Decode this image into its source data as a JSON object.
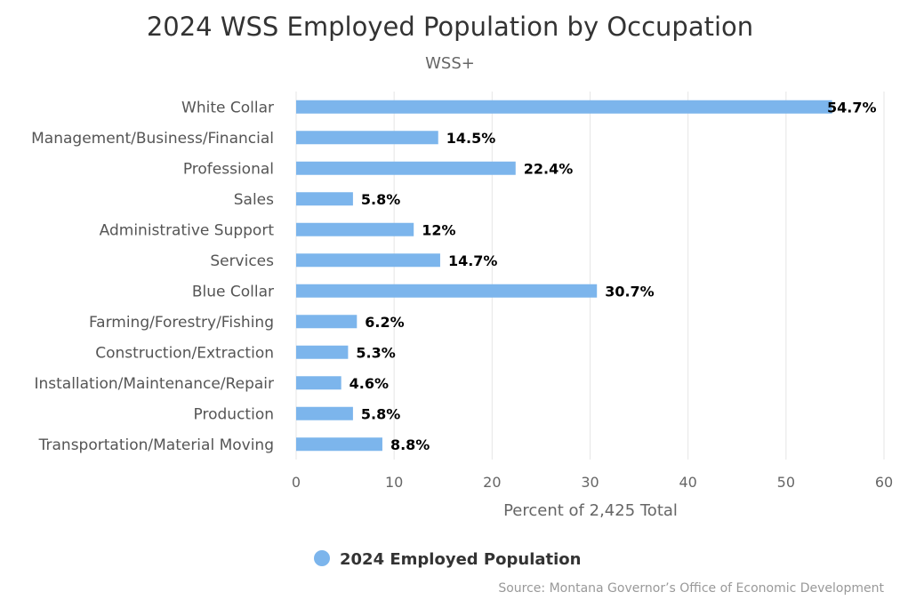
{
  "chart_data": {
    "type": "bar",
    "orientation": "horizontal",
    "title": "2024 WSS Employed Population by Occupation",
    "subtitle": "WSS+",
    "categories": [
      "White Collar",
      "Management/Business/Financial",
      "Professional",
      "Sales",
      "Administrative Support",
      "Services",
      "Blue Collar",
      "Farming/Forestry/Fishing",
      "Construction/Extraction",
      "Installation/Maintenance/Repair",
      "Production",
      "Transportation/Material Moving"
    ],
    "series": [
      {
        "name": "2024 Employed Population",
        "values": [
          54.7,
          14.5,
          22.4,
          5.8,
          12,
          14.7,
          30.7,
          6.2,
          5.3,
          4.6,
          5.8,
          8.8
        ],
        "labels": [
          "54.7%",
          "14.5%",
          "22.4%",
          "5.8%",
          "12%",
          "14.7%",
          "30.7%",
          "6.2%",
          "5.3%",
          "4.6%",
          "5.8%",
          "8.8%"
        ],
        "color": "#7cb5ec"
      }
    ],
    "xlabel": "Percent of 2,425 Total",
    "ylabel": "",
    "xlim": [
      0,
      60
    ],
    "ticks": [
      "0",
      "10",
      "20",
      "30",
      "40",
      "50",
      "60"
    ],
    "grid": true,
    "legend": "bottom-center",
    "source": "Source: Montana Governor’s Office of Economic Development"
  }
}
